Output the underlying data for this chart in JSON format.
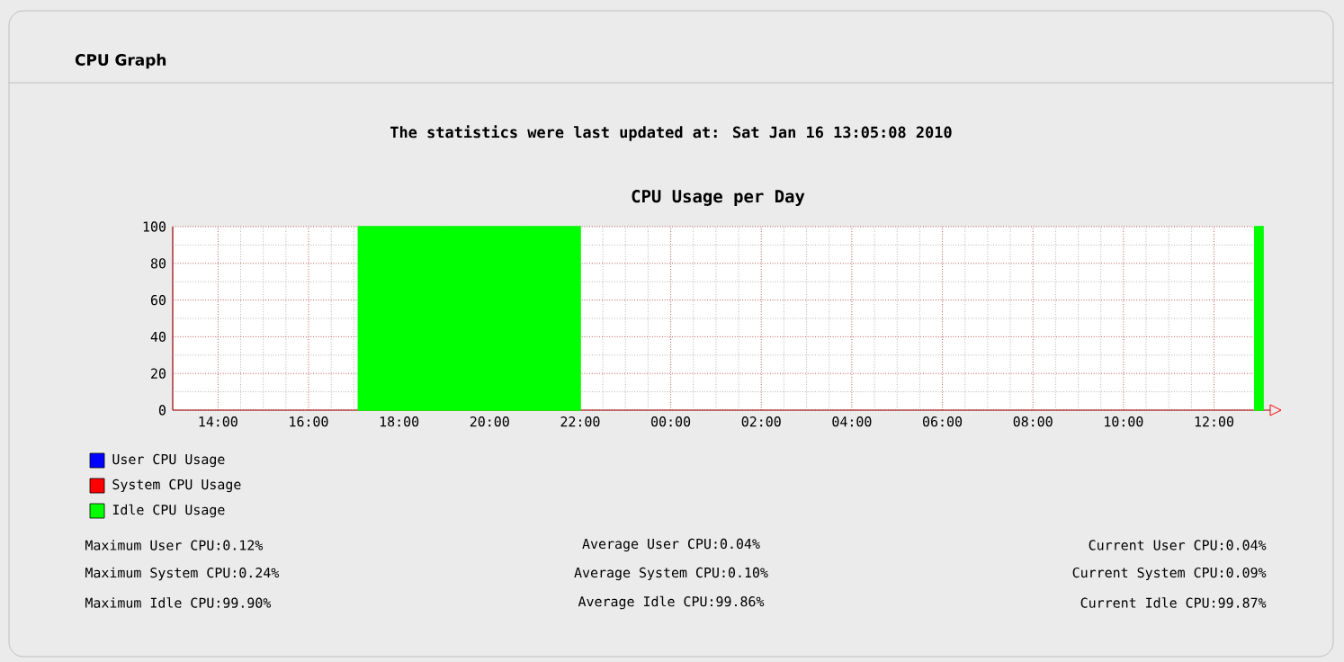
{
  "chart_data": {
    "type": "area",
    "title": "CPU Usage per Day",
    "subtitle": "The statistics were last updated at: Sat Jan 16 13:05:08 2010",
    "annotations": [
      "CPU Graph",
      "Maximum User CPU:0.12%",
      "Average User CPU:0.04%",
      "Current User CPU:0.04%",
      "Maximum System CPU:0.24%",
      "Average System CPU:0.10%",
      "Current System CPU:0.09%",
      "Maximum Idle CPU:99.90%",
      "Average Idle CPU:99.86%",
      "Current Idle CPU:99.87%"
    ],
    "series": [
      {
        "name": "User CPU Usage",
        "color": "#0000ff"
      },
      {
        "name": "System CPU Usage",
        "color": "#ff0000"
      },
      {
        "name": "Idle CPU Usage",
        "color": "#00ff00",
        "x": [
          "2010-01-15T17:06",
          "2010-01-15T22:00",
          "2010-01-16T05:00",
          "2010-01-16T12:54",
          "2010-01-16T13:05"
        ],
        "values": [
          100,
          100,
          null,
          100,
          100
        ]
      }
    ],
    "xlim": [
      "2010-01-15T13:00",
      "2010-01-16T13:05"
    ],
    "ylim": [
      0,
      100
    ],
    "xticks": [
      {
        "value": "2010-01-15T14:00",
        "label": "14:00"
      },
      {
        "value": "2010-01-15T16:00",
        "label": "16:00"
      },
      {
        "value": "2010-01-15T18:00",
        "label": "18:00"
      },
      {
        "value": "2010-01-15T20:00",
        "label": "20:00"
      },
      {
        "value": "2010-01-15T22:00",
        "label": "22:00"
      },
      {
        "value": "2010-01-16T00:00",
        "label": "00:00"
      },
      {
        "value": "2010-01-16T02:00",
        "label": "02:00"
      },
      {
        "value": "2010-01-16T04:00",
        "label": "04:00"
      },
      {
        "value": "2010-01-16T06:00",
        "label": "06:00"
      },
      {
        "value": "2010-01-16T08:00",
        "label": "08:00"
      },
      {
        "value": "2010-01-16T10:00",
        "label": "10:00"
      },
      {
        "value": "2010-01-16T12:00",
        "label": "12:00"
      }
    ],
    "yticks": [
      0,
      20,
      40,
      60,
      80,
      100
    ],
    "grid": true,
    "legend": "bottom left"
  }
}
